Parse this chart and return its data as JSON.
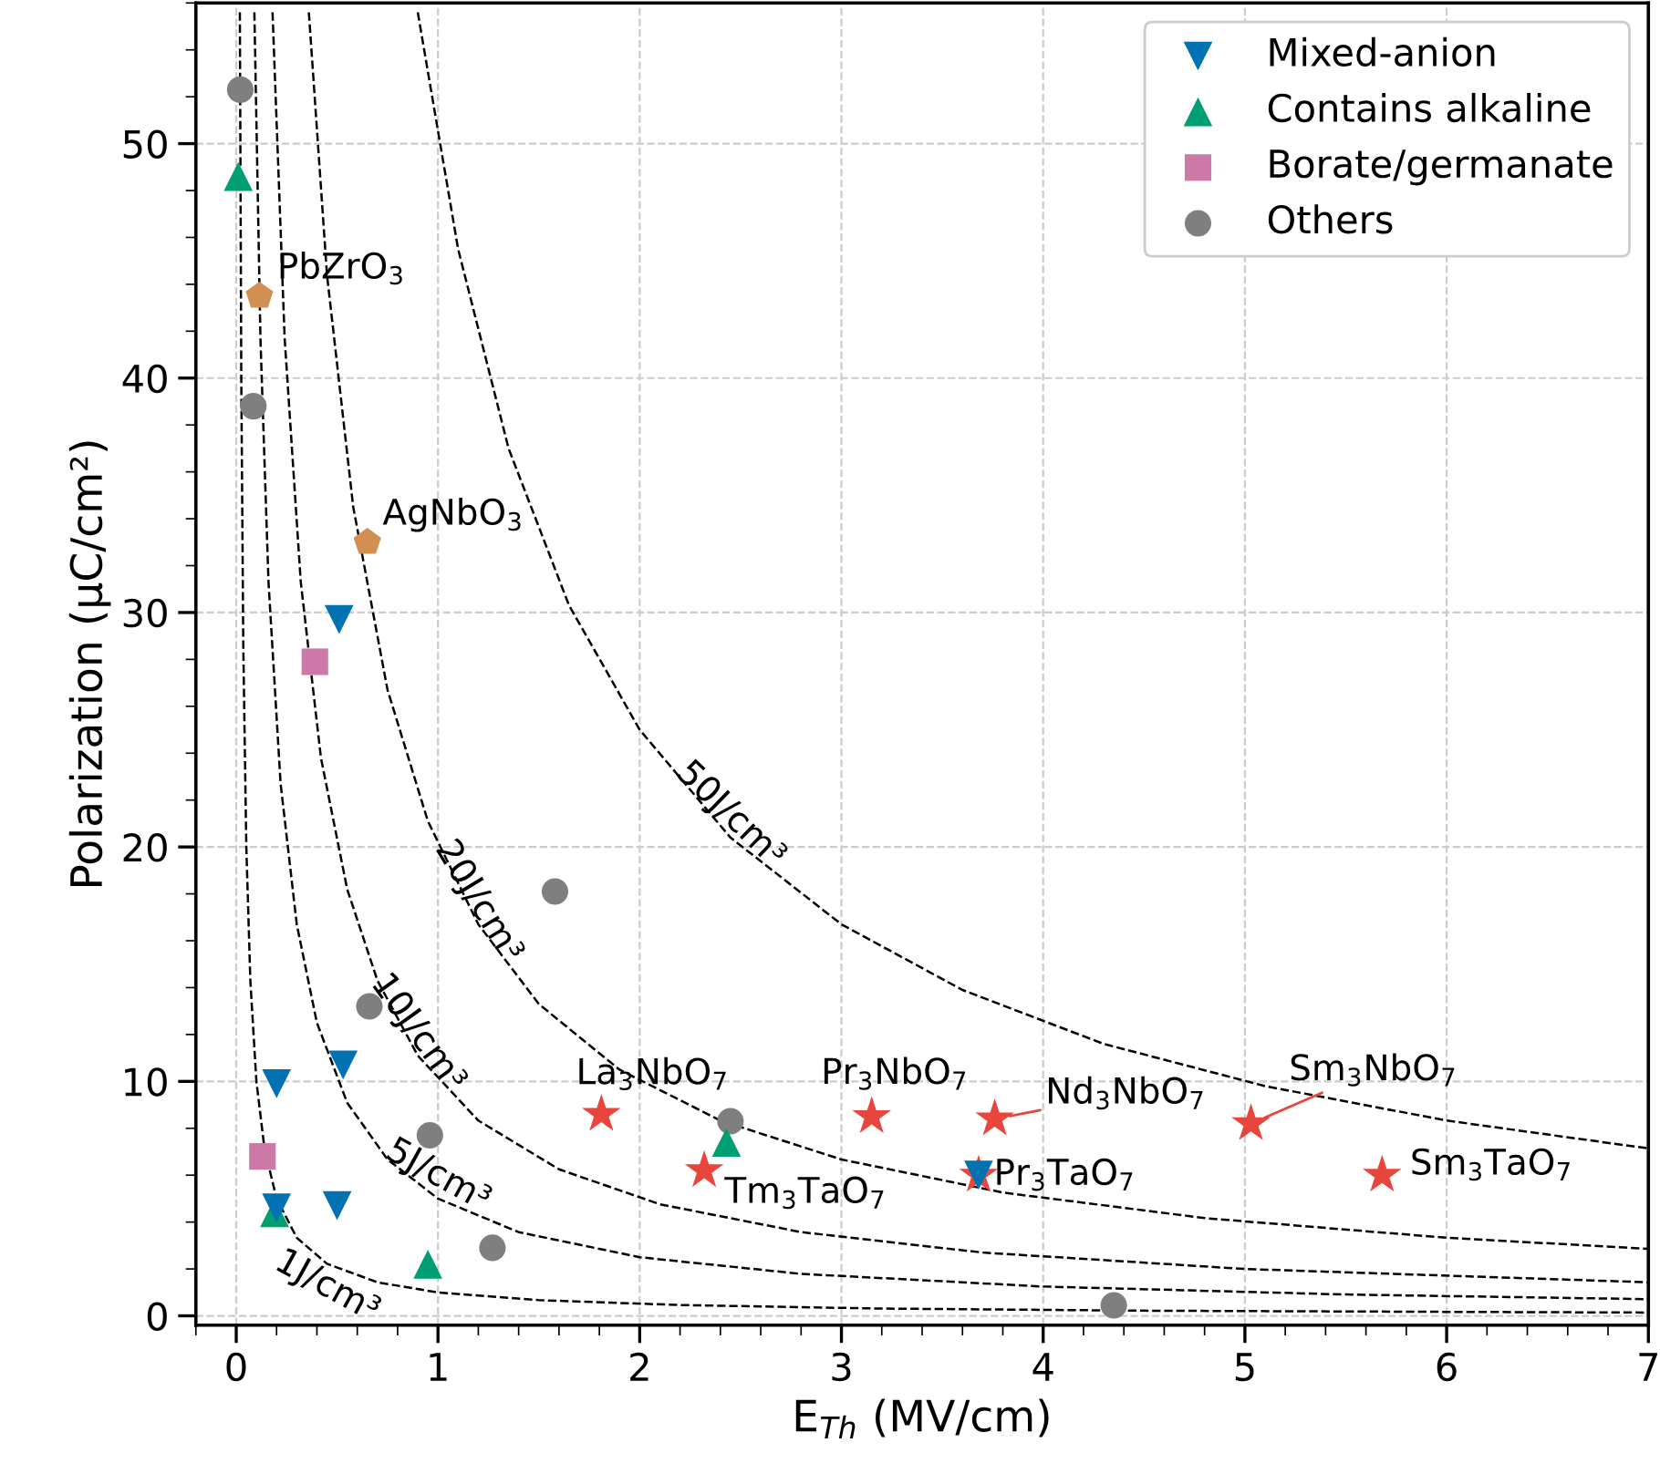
{
  "chart_data": {
    "type": "scatter",
    "xlabel": "E$_{Th}$ (MV/cm)",
    "ylabel": "Polarization (μC/cm²)",
    "xlim": [
      -0.2,
      7
    ],
    "ylim": [
      -0.4,
      56
    ],
    "xticks": [
      0,
      1,
      2,
      3,
      4,
      5,
      6,
      7
    ],
    "yticks": [
      0,
      10,
      20,
      30,
      40,
      50
    ],
    "grid": true,
    "legend": "top right",
    "series": [
      {
        "name": "1J/cm³",
        "type": "line",
        "color": "#000000",
        "line_style": "dashed",
        "marker": "none",
        "x": [
          0.018,
          0.025,
          0.035,
          0.05,
          0.07,
          0.1,
          0.14,
          0.2,
          0.3,
          0.45,
          0.7,
          1,
          1.5,
          2.2,
          3.2,
          4.5,
          6,
          7
        ],
        "values": [
          55.6,
          40,
          28.6,
          20,
          14.3,
          10,
          7.14,
          5,
          3.33,
          2.22,
          1.43,
          1,
          0.67,
          0.46,
          0.31,
          0.22,
          0.17,
          0.14
        ]
      },
      {
        "name": "5J/cm³",
        "type": "line",
        "color": "#000000",
        "line_style": "dashed",
        "marker": "none",
        "x": [
          0.09,
          0.12,
          0.16,
          0.22,
          0.3,
          0.4,
          0.55,
          0.75,
          1,
          1.4,
          2,
          2.8,
          4,
          5.5,
          7
        ],
        "values": [
          55.6,
          41.7,
          31.3,
          22.7,
          16.7,
          12.5,
          9.09,
          6.67,
          5,
          3.57,
          2.5,
          1.79,
          1.25,
          0.91,
          0.71
        ]
      },
      {
        "name": "10J/cm³",
        "type": "line",
        "color": "#000000",
        "line_style": "dashed",
        "marker": "none",
        "x": [
          0.18,
          0.24,
          0.32,
          0.42,
          0.55,
          0.7,
          0.9,
          1.2,
          1.6,
          2.1,
          2.8,
          3.7,
          5,
          7
        ],
        "values": [
          55.6,
          41.7,
          31.3,
          23.8,
          18.2,
          14.3,
          11.1,
          8.33,
          6.25,
          4.76,
          3.57,
          2.7,
          2,
          1.43
        ]
      },
      {
        "name": "20J/cm³",
        "type": "line",
        "color": "#000000",
        "line_style": "dashed",
        "marker": "none",
        "x": [
          0.36,
          0.45,
          0.58,
          0.75,
          0.95,
          1.2,
          1.5,
          1.9,
          2.4,
          3,
          3.8,
          4.8,
          6,
          7
        ],
        "values": [
          55.6,
          44.4,
          34.5,
          26.7,
          21.1,
          16.7,
          13.3,
          10.5,
          8.33,
          6.67,
          5.26,
          4.17,
          3.33,
          2.86
        ]
      },
      {
        "name": "50J/cm³",
        "type": "line",
        "color": "#000000",
        "line_style": "dashed",
        "marker": "none",
        "x": [
          0.9,
          1.1,
          1.35,
          1.65,
          2,
          2.45,
          3,
          3.6,
          4.3,
          5.1,
          6,
          7
        ],
        "values": [
          55.6,
          45.5,
          37,
          30.3,
          25,
          20.4,
          16.7,
          13.9,
          11.6,
          9.8,
          8.33,
          7.14
        ]
      },
      {
        "name": "Mixed-anion",
        "color": "#0072b2",
        "marker": "triangle_down",
        "x": [
          0.51,
          0.2,
          0.53,
          0.2,
          0.5,
          3.68
        ],
        "values": [
          29.7,
          9.9,
          10.7,
          4.6,
          4.7,
          6.0
        ]
      },
      {
        "name": "Contains alkaline",
        "color": "#009e73",
        "marker": "triangle",
        "x": [
          0.01,
          0.19,
          0.95,
          2.43
        ],
        "values": [
          48.6,
          4.4,
          2.2,
          7.4
        ]
      },
      {
        "name": "Borate/germanate",
        "color": "#cc79a7",
        "marker": "square",
        "x": [
          0.39,
          0.13
        ],
        "values": [
          27.9,
          6.8
        ]
      },
      {
        "name": "Others",
        "color": "#7f7f7f",
        "marker": "circle",
        "x": [
          0.02,
          0.085,
          1.58,
          0.66,
          0.96,
          1.27,
          2.45,
          4.35
        ],
        "values": [
          52.3,
          38.8,
          18.1,
          13.2,
          7.7,
          2.9,
          8.3,
          0.45
        ]
      },
      {
        "color": "#d18f52",
        "x": [
          0.115,
          0.65
        ],
        "values": [
          43.5,
          33.0
        ]
      },
      {
        "color": "#e8453c",
        "marker": "star",
        "x": [
          1.81,
          2.32,
          3.15,
          3.76,
          3.68,
          5.03,
          5.68
        ],
        "values": [
          8.6,
          6.2,
          8.5,
          8.4,
          6.0,
          8.2,
          6.0
        ]
      }
    ],
    "annotations": [
      {
        "text": "PbZrO$_{3}$",
        "x": 0.115,
        "y": 43.5
      },
      {
        "text": "AgNbO$_{3}$",
        "x": 0.65,
        "y": 33.0
      },
      {
        "text": "La$_{3}$NbO$_{7}$",
        "x": 1.81,
        "y": 8.6
      },
      {
        "text": "Pr$_{3}$NbO$_{7}$",
        "x": 3.15,
        "y": 8.5
      },
      {
        "text": "Nd$_{3}$NbO$_{7}$",
        "x": 3.76,
        "y": 8.4
      },
      {
        "text": "Tm$_{3}$TaO$_{7}$",
        "x": 2.32,
        "y": 6.2
      },
      {
        "text": "Pr$_{3}$TaO$_{7}$",
        "x": 3.68,
        "y": 6.0
      },
      {
        "text": "Sm$_{3}$NbO$_{7}$",
        "x": 5.03,
        "y": 8.2
      },
      {
        "text": "Sm$_{3}$TaO$_{7}$",
        "x": 5.68,
        "y": 6.0
      }
    ]
  }
}
